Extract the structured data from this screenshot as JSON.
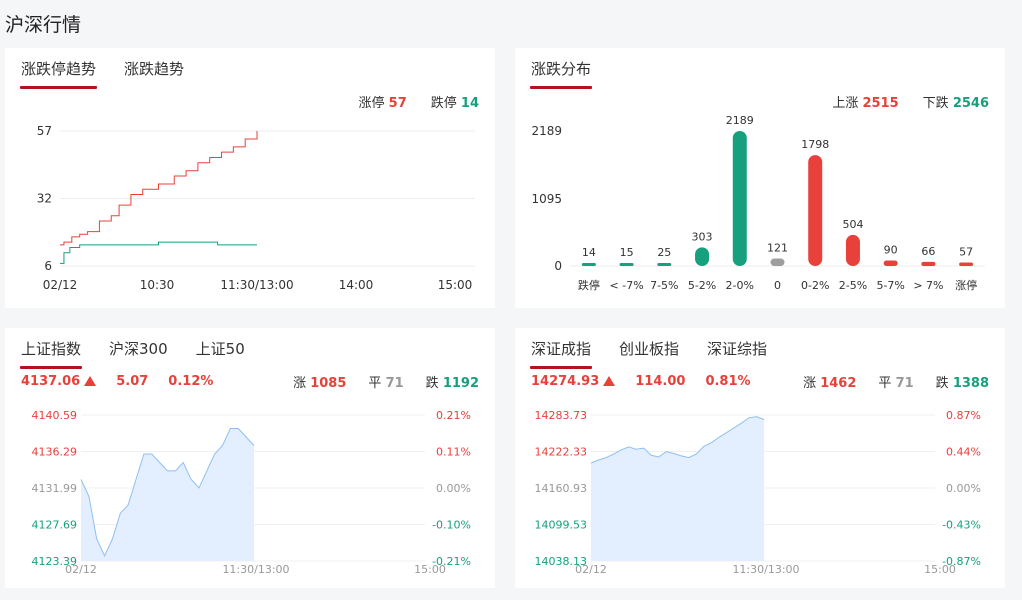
{
  "page_title": "沪深行情",
  "limit_panel": {
    "tabs": [
      "涨跌停趋势",
      "涨跌趋势"
    ],
    "stats": {
      "up_label": "涨停",
      "up_value": "57",
      "down_label": "跌停",
      "down_value": "14"
    },
    "chart_data": {
      "type": "line",
      "y_ticks": [
        "57",
        "32",
        "6"
      ],
      "x_ticks": [
        "02/12",
        "10:30",
        "11:30/13:00",
        "14:00",
        "15:00"
      ],
      "ylim": [
        6,
        57
      ],
      "series": [
        {
          "color": "#e8403a",
          "x_fraction": [
            0,
            0.02,
            0.06,
            0.1,
            0.14,
            0.2,
            0.26,
            0.3,
            0.36,
            0.42,
            0.5,
            0.58,
            0.64,
            0.7,
            0.76,
            0.82,
            0.88,
            0.94,
            1.0
          ],
          "values": [
            14,
            15,
            17,
            18,
            19,
            23,
            25,
            29,
            33,
            35,
            37,
            40,
            42,
            45,
            47,
            49,
            51,
            54,
            57
          ]
        },
        {
          "color": "#16a07e",
          "x_fraction": [
            0,
            0.02,
            0.05,
            0.1,
            0.2,
            0.3,
            0.4,
            0.5,
            0.6,
            0.7,
            0.8,
            0.9,
            1.0
          ],
          "values": [
            7,
            11,
            13,
            14,
            14,
            14,
            14,
            15,
            15,
            15,
            14,
            14,
            14
          ]
        }
      ]
    }
  },
  "dist_panel": {
    "tabs": [
      "涨跌分布"
    ],
    "stats": {
      "up_label": "上涨",
      "up_value": "2515",
      "down_label": "下跌",
      "down_value": "2546"
    },
    "chart_data": {
      "type": "bar",
      "y_ticks": [
        "2189",
        "1095",
        "0"
      ],
      "ylim": [
        0,
        2189
      ],
      "categories": [
        "跌停",
        "< -7%",
        "7-5%",
        "5-2%",
        "2-0%",
        "0",
        "0-2%",
        "2-5%",
        "5-7%",
        "> 7%",
        "涨停"
      ],
      "values": [
        14,
        15,
        25,
        303,
        2189,
        121,
        1798,
        504,
        90,
        66,
        57
      ],
      "colors": [
        "#16a07e",
        "#16a07e",
        "#16a07e",
        "#16a07e",
        "#16a07e",
        "#9e9e9e",
        "#e8403a",
        "#e8403a",
        "#e8403a",
        "#e8403a",
        "#e8403a"
      ]
    }
  },
  "sh_panel": {
    "tabs": [
      "上证指数",
      "沪深300",
      "上证50"
    ],
    "quote": {
      "price": "4137.06",
      "change": "5.07",
      "pct": "0.12%",
      "up_label": "涨",
      "up": "1085",
      "flat_label": "平",
      "flat": "71",
      "down_label": "跌",
      "down": "1192"
    },
    "chart_data": {
      "type": "area",
      "left_ticks": [
        "4140.59",
        "4136.29",
        "4131.99",
        "4127.69",
        "4123.39"
      ],
      "right_ticks": [
        "0.21%",
        "0.11%",
        "0.00%",
        "-0.10%",
        "-0.21%"
      ],
      "x_ticks": [
        "02/12",
        "11:30/13:00",
        "15:00"
      ],
      "ylim": [
        4123.39,
        4140.59
      ],
      "values": [
        4133,
        4131,
        4126,
        4124,
        4126,
        4129,
        4130,
        4133,
        4136,
        4136,
        4135,
        4134,
        4134,
        4135,
        4133,
        4132,
        4134,
        4136,
        4137,
        4139,
        4139,
        4138,
        4137
      ]
    }
  },
  "sz_panel": {
    "tabs": [
      "深证成指",
      "创业板指",
      "深证综指"
    ],
    "quote": {
      "price": "14274.93",
      "change": "114.00",
      "pct": "0.81%",
      "up_label": "涨",
      "up": "1462",
      "flat_label": "平",
      "flat": "71",
      "down_label": "跌",
      "down": "1388"
    },
    "chart_data": {
      "type": "area",
      "left_ticks": [
        "14283.73",
        "14222.33",
        "14160.93",
        "14099.53",
        "14038.13"
      ],
      "right_ticks": [
        "0.87%",
        "0.44%",
        "0.00%",
        "-0.43%",
        "-0.87%"
      ],
      "x_ticks": [
        "02/12",
        "11:30/13:00",
        "15:00"
      ],
      "ylim": [
        14038.13,
        14283.73
      ],
      "values": [
        14203,
        14208,
        14212,
        14218,
        14225,
        14230,
        14226,
        14228,
        14216,
        14213,
        14222,
        14219,
        14215,
        14212,
        14218,
        14231,
        14237,
        14246,
        14254,
        14262,
        14270,
        14279,
        14281,
        14276
      ]
    }
  }
}
